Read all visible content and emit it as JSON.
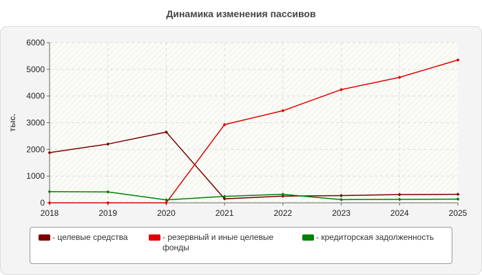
{
  "chart_data": {
    "type": "line",
    "title": "Динамика изменения пассивов",
    "ylabel": "тыс.",
    "xlabel": "",
    "x": [
      "2018",
      "2019",
      "2020",
      "2021",
      "2022",
      "2023",
      "2024",
      "2025"
    ],
    "ylim": [
      0,
      6000
    ],
    "yticks": [
      "0",
      "1000",
      "2000",
      "3000",
      "4000",
      "5000",
      "6000"
    ],
    "grid": true,
    "legend_position": "bottom",
    "series": [
      {
        "name": "- целевые средства",
        "color": "#7b0000",
        "values": [
          1880,
          2200,
          2650,
          150,
          250,
          270,
          310,
          320
        ]
      },
      {
        "name": "- резервный и иные целевые фонды",
        "color": "#e00000",
        "values": [
          0,
          0,
          0,
          2930,
          3450,
          4240,
          4700,
          5350
        ]
      },
      {
        "name": "- кредиторская задолженность",
        "color": "#008000",
        "values": [
          420,
          410,
          110,
          240,
          320,
          120,
          130,
          140
        ]
      }
    ]
  }
}
